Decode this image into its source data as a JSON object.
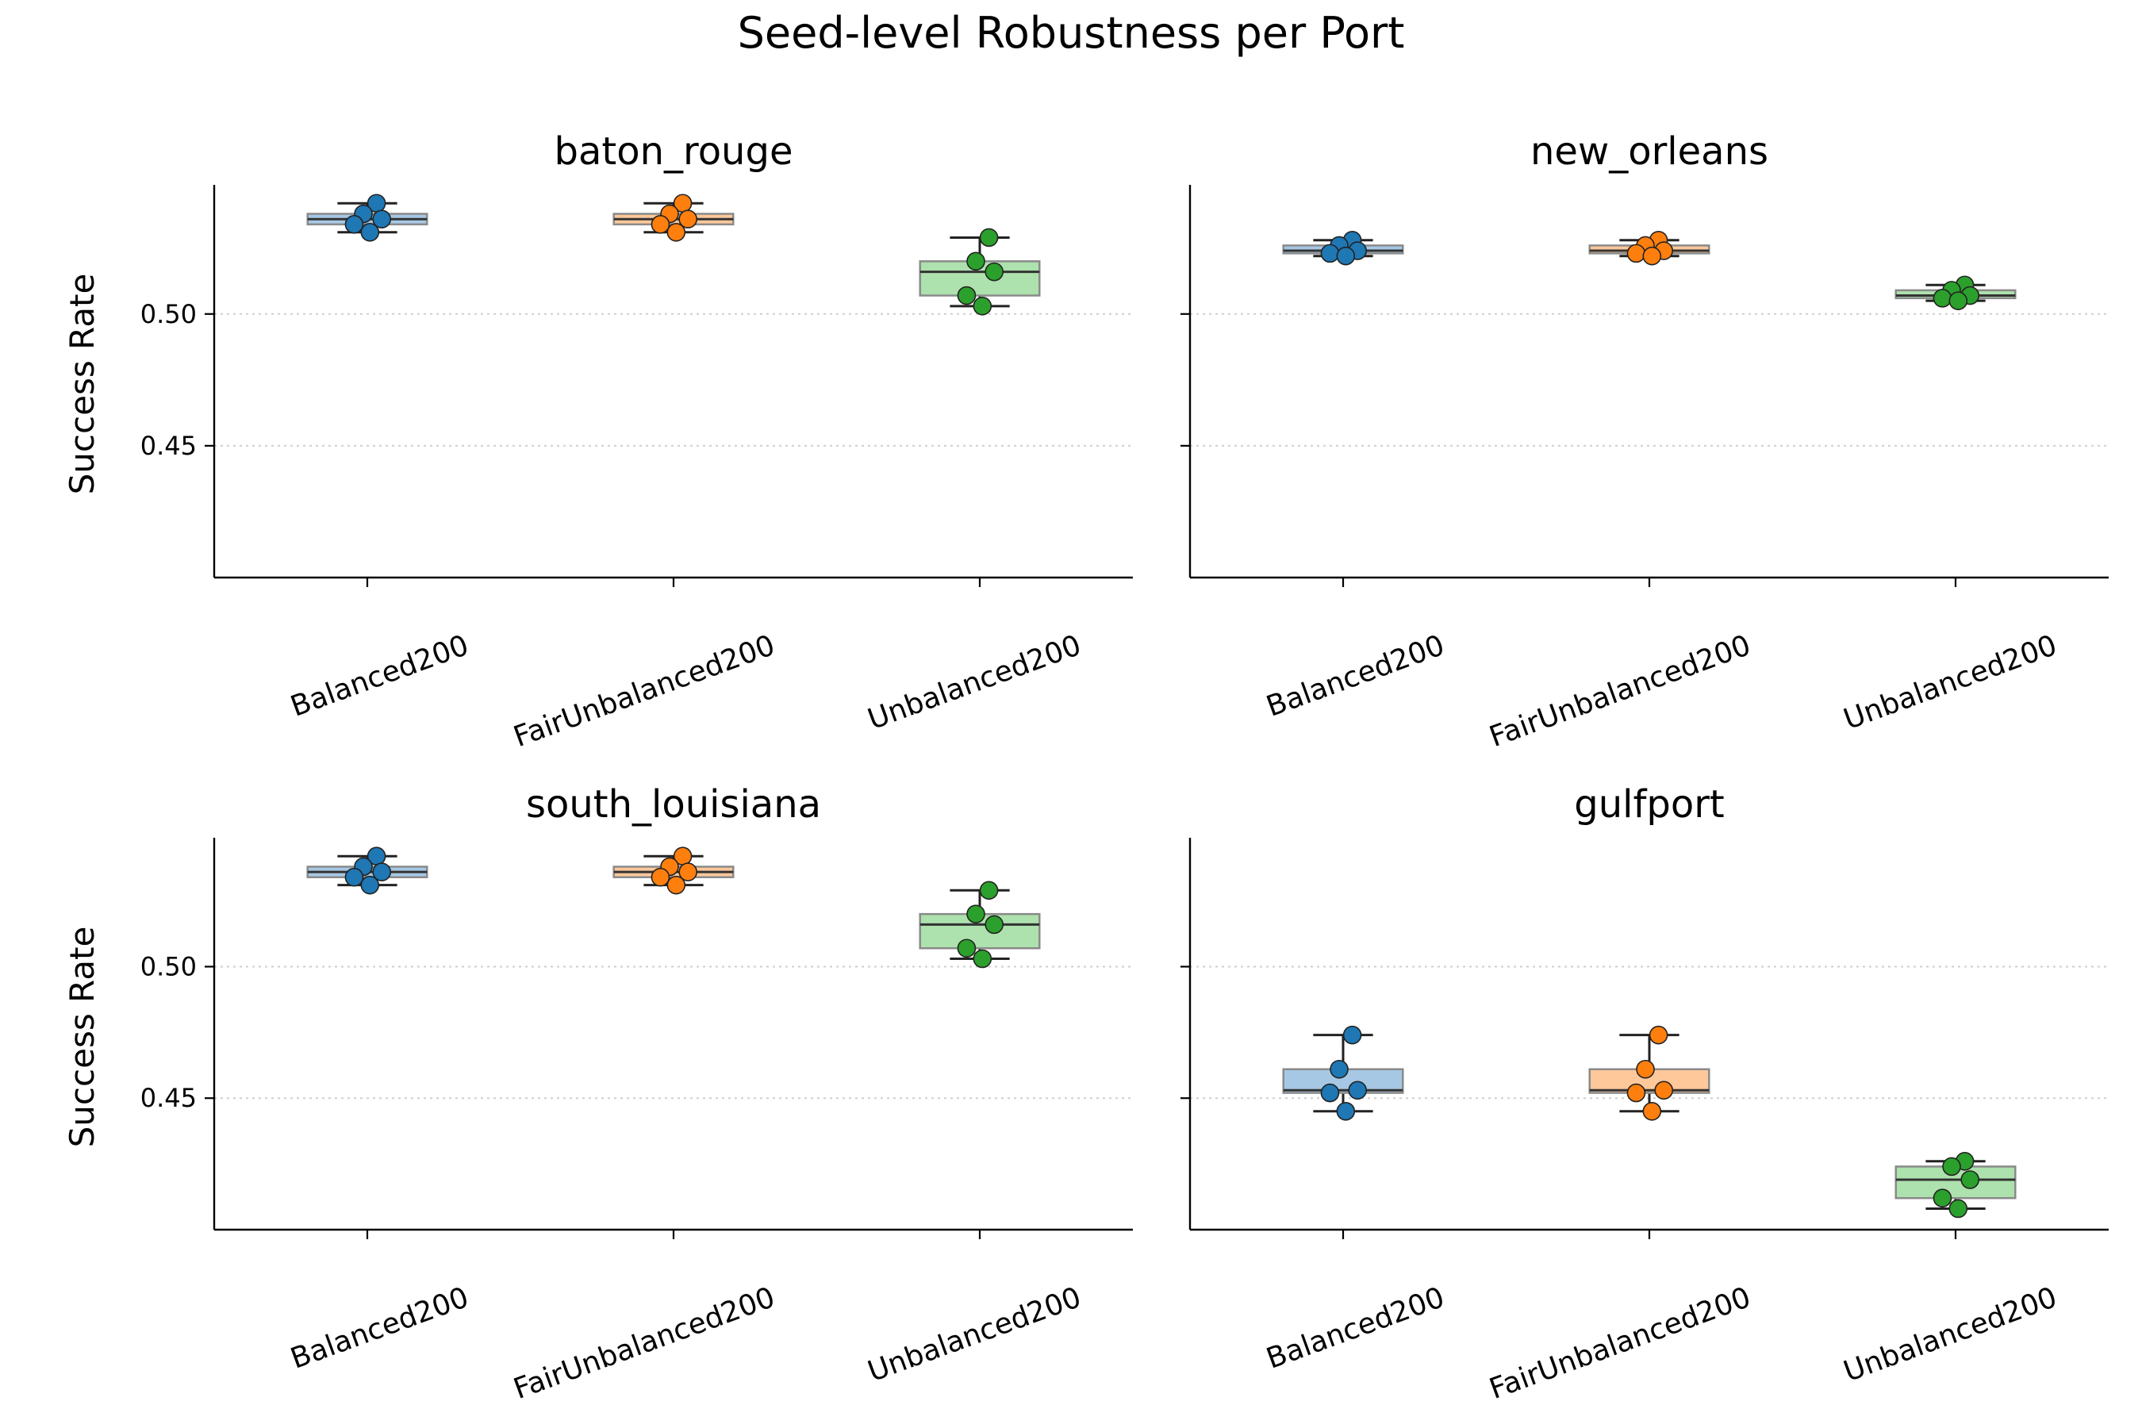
{
  "chart_data": {
    "type": "box",
    "title": "Seed-level Robustness per Port",
    "ylabel": "Success Rate",
    "ylim": [
      0.4,
      0.549
    ],
    "yticks": [
      0.45,
      0.5
    ],
    "ytick_labels": [
      "0.45",
      "0.50"
    ],
    "grid": "horizontal dotted at y ticks",
    "categories": [
      "Balanced200",
      "FairUnbalanced200",
      "Unbalanced200"
    ],
    "category_colors": [
      "#1f77b4",
      "#ff7f0e",
      "#2ca02c"
    ],
    "box_fill_colors": [
      "#a6c8e5",
      "#ffc89a",
      "#ade1ad"
    ],
    "panels": [
      {
        "title": "baton_rouge",
        "boxes": [
          {
            "category": "Balanced200",
            "whisker_low": 0.531,
            "q1": 0.534,
            "median": 0.536,
            "q3": 0.538,
            "whisker_high": 0.542,
            "points": [
              0.542,
              0.538,
              0.536,
              0.534,
              0.531
            ]
          },
          {
            "category": "FairUnbalanced200",
            "whisker_low": 0.531,
            "q1": 0.534,
            "median": 0.536,
            "q3": 0.538,
            "whisker_high": 0.542,
            "points": [
              0.542,
              0.538,
              0.536,
              0.534,
              0.531
            ]
          },
          {
            "category": "Unbalanced200",
            "whisker_low": 0.503,
            "q1": 0.507,
            "median": 0.516,
            "q3": 0.52,
            "whisker_high": 0.529,
            "points": [
              0.529,
              0.52,
              0.516,
              0.507,
              0.503
            ]
          }
        ]
      },
      {
        "title": "new_orleans",
        "boxes": [
          {
            "category": "Balanced200",
            "whisker_low": 0.522,
            "q1": 0.523,
            "median": 0.524,
            "q3": 0.526,
            "whisker_high": 0.528,
            "points": [
              0.528,
              0.526,
              0.524,
              0.523,
              0.522
            ]
          },
          {
            "category": "FairUnbalanced200",
            "whisker_low": 0.522,
            "q1": 0.523,
            "median": 0.524,
            "q3": 0.526,
            "whisker_high": 0.528,
            "points": [
              0.528,
              0.526,
              0.524,
              0.523,
              0.522
            ]
          },
          {
            "category": "Unbalanced200",
            "whisker_low": 0.505,
            "q1": 0.506,
            "median": 0.507,
            "q3": 0.509,
            "whisker_high": 0.511,
            "points": [
              0.511,
              0.509,
              0.507,
              0.506,
              0.505
            ]
          }
        ]
      },
      {
        "title": "south_louisiana",
        "boxes": [
          {
            "category": "Balanced200",
            "whisker_low": 0.531,
            "q1": 0.534,
            "median": 0.536,
            "q3": 0.538,
            "whisker_high": 0.542,
            "points": [
              0.542,
              0.538,
              0.536,
              0.534,
              0.531
            ]
          },
          {
            "category": "FairUnbalanced200",
            "whisker_low": 0.531,
            "q1": 0.534,
            "median": 0.536,
            "q3": 0.538,
            "whisker_high": 0.542,
            "points": [
              0.542,
              0.538,
              0.536,
              0.534,
              0.531
            ]
          },
          {
            "category": "Unbalanced200",
            "whisker_low": 0.503,
            "q1": 0.507,
            "median": 0.516,
            "q3": 0.52,
            "whisker_high": 0.529,
            "points": [
              0.529,
              0.52,
              0.516,
              0.507,
              0.503
            ]
          }
        ]
      },
      {
        "title": "gulfport",
        "boxes": [
          {
            "category": "Balanced200",
            "whisker_low": 0.445,
            "q1": 0.452,
            "median": 0.453,
            "q3": 0.461,
            "whisker_high": 0.474,
            "points": [
              0.474,
              0.461,
              0.453,
              0.452,
              0.445
            ]
          },
          {
            "category": "FairUnbalanced200",
            "whisker_low": 0.445,
            "q1": 0.452,
            "median": 0.453,
            "q3": 0.461,
            "whisker_high": 0.474,
            "points": [
              0.474,
              0.461,
              0.453,
              0.452,
              0.445
            ]
          },
          {
            "category": "Unbalanced200",
            "whisker_low": 0.408,
            "q1": 0.412,
            "median": 0.419,
            "q3": 0.424,
            "whisker_high": 0.426,
            "points": [
              0.426,
              0.424,
              0.419,
              0.412,
              0.408
            ]
          }
        ]
      }
    ]
  }
}
